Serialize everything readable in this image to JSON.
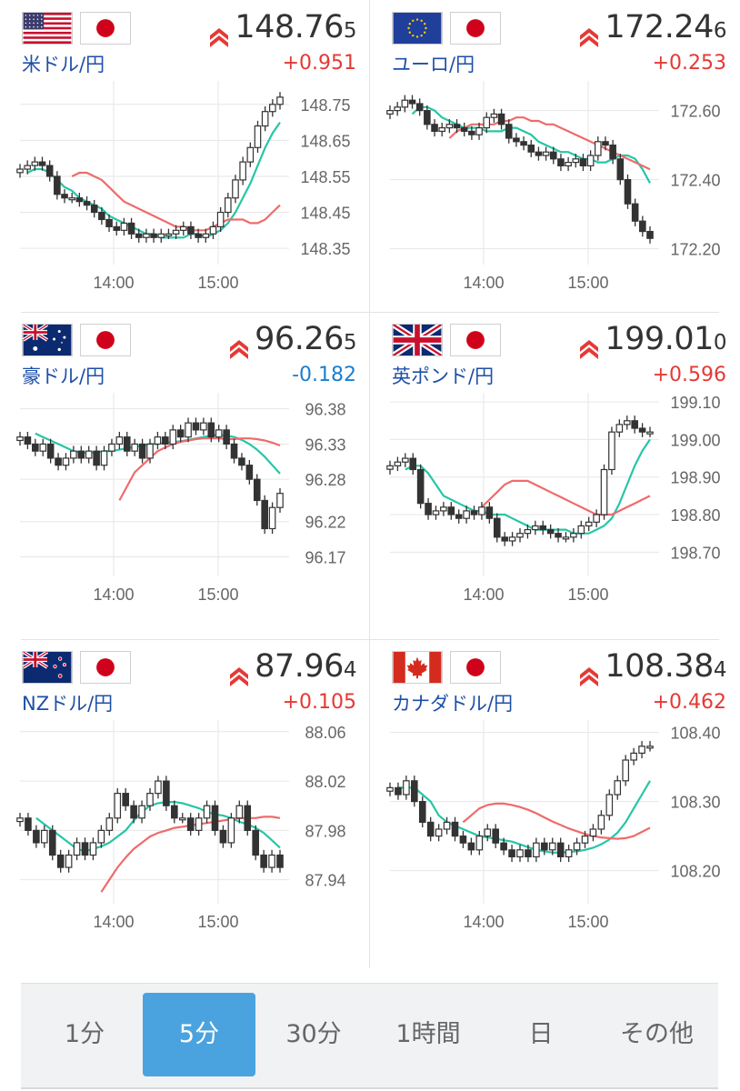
{
  "colors": {
    "up": "#e53935",
    "down": "#1a7fd0",
    "pair_name": "#1e4fa8",
    "short_ma": "#26c6a6",
    "long_ma": "#ef6b6b",
    "active_tab": "#4aa3df"
  },
  "pairs": [
    {
      "name": "米ドル/円",
      "flag_base": "us-flag-icon",
      "flag_quote": "japan-flag-icon",
      "price_main": "148.76",
      "price_last": "5",
      "trend_icon": "double-chevron-up-icon",
      "change": "+0.951",
      "change_dir": "up",
      "y_ticks": [
        "148.75",
        "148.65",
        "148.55",
        "148.45",
        "148.35"
      ],
      "x_ticks": [
        "14:00",
        "15:00"
      ]
    },
    {
      "name": "ユーロ/円",
      "flag_base": "eu-flag-icon",
      "flag_quote": "japan-flag-icon",
      "price_main": "172.24",
      "price_last": "6",
      "trend_icon": "double-chevron-up-icon",
      "change": "+0.253",
      "change_dir": "up",
      "y_ticks": [
        "172.60",
        "172.40",
        "172.20"
      ],
      "x_ticks": [
        "14:00",
        "15:00"
      ]
    },
    {
      "name": "豪ドル/円",
      "flag_base": "australia-flag-icon",
      "flag_quote": "japan-flag-icon",
      "price_main": "96.26",
      "price_last": "5",
      "trend_icon": "double-chevron-up-icon",
      "change": "-0.182",
      "change_dir": "down",
      "y_ticks": [
        "96.38",
        "96.33",
        "96.28",
        "96.22",
        "96.17"
      ],
      "x_ticks": [
        "14:00",
        "15:00"
      ]
    },
    {
      "name": "英ポンド/円",
      "flag_base": "uk-flag-icon",
      "flag_quote": "japan-flag-icon",
      "price_main": "199.01",
      "price_last": "0",
      "trend_icon": "double-chevron-up-icon",
      "change": "+0.596",
      "change_dir": "up",
      "y_ticks": [
        "199.10",
        "199.00",
        "198.90",
        "198.80",
        "198.70"
      ],
      "x_ticks": [
        "14:00",
        "15:00"
      ]
    },
    {
      "name": "NZドル/円",
      "flag_base": "nz-flag-icon",
      "flag_quote": "japan-flag-icon",
      "price_main": "87.96",
      "price_last": "4",
      "trend_icon": "double-chevron-up-icon",
      "change": "+0.105",
      "change_dir": "up",
      "y_ticks": [
        "88.06",
        "88.02",
        "87.98",
        "87.94"
      ],
      "x_ticks": [
        "14:00",
        "15:00"
      ]
    },
    {
      "name": "カナダドル/円",
      "flag_base": "canada-flag-icon",
      "flag_quote": "japan-flag-icon",
      "price_main": "108.38",
      "price_last": "4",
      "trend_icon": "double-chevron-up-icon",
      "change": "+0.462",
      "change_dir": "up",
      "y_ticks": [
        "108.40",
        "108.30",
        "108.20"
      ],
      "x_ticks": [
        "14:00",
        "15:00"
      ]
    }
  ],
  "tabs": [
    {
      "label": "1分",
      "active": false
    },
    {
      "label": "5分",
      "active": true
    },
    {
      "label": "30分",
      "active": false
    },
    {
      "label": "1時間",
      "active": false
    },
    {
      "label": "日",
      "active": false
    },
    {
      "label": "その他",
      "active": false
    }
  ],
  "chart_data": [
    {
      "type": "candlestick",
      "title": "米ドル/円",
      "x_ticks": [
        "14:00",
        "15:00"
      ],
      "y_ticks": [
        148.75,
        148.65,
        148.55,
        148.45,
        148.35
      ],
      "ylim": [
        148.32,
        148.8
      ],
      "close": [
        148.57,
        148.58,
        148.59,
        148.58,
        148.55,
        148.5,
        148.49,
        148.49,
        148.48,
        148.47,
        148.45,
        148.43,
        148.41,
        148.4,
        148.42,
        148.39,
        148.38,
        148.39,
        148.38,
        148.39,
        148.39,
        148.4,
        148.41,
        148.39,
        148.38,
        148.39,
        148.41,
        148.45,
        148.49,
        148.54,
        148.59,
        148.63,
        148.69,
        148.73,
        148.75,
        148.77
      ],
      "series": [
        {
          "name": "short_ma",
          "values": [
            148.56,
            148.57,
            148.57,
            148.56,
            148.54,
            148.52,
            148.51,
            148.49,
            148.48,
            148.47,
            148.46,
            148.44,
            148.43,
            148.42,
            148.41,
            148.4,
            148.39,
            148.39,
            148.38,
            148.38,
            148.38,
            148.38,
            148.39,
            148.39,
            148.38,
            148.39,
            148.4,
            148.42,
            148.45,
            148.49,
            148.53,
            148.58,
            148.63,
            148.67,
            148.7
          ]
        },
        {
          "name": "long_ma",
          "values": [
            148.55,
            148.56,
            148.56,
            148.55,
            148.54,
            148.52,
            148.5,
            148.48,
            148.47,
            148.46,
            148.45,
            148.44,
            148.43,
            148.42,
            148.41,
            148.41,
            148.4,
            148.4,
            148.4,
            148.41,
            148.42,
            148.43,
            148.43,
            148.43,
            148.42,
            148.42,
            148.43,
            148.45,
            148.47
          ]
        }
      ]
    },
    {
      "type": "candlestick",
      "title": "ユーロ/円",
      "x_ticks": [
        "14:00",
        "15:00"
      ],
      "y_ticks": [
        172.6,
        172.4,
        172.2
      ],
      "ylim": [
        172.17,
        172.67
      ],
      "close": [
        172.6,
        172.61,
        172.63,
        172.62,
        172.6,
        172.56,
        172.54,
        172.55,
        172.56,
        172.55,
        172.54,
        172.53,
        172.55,
        172.58,
        172.59,
        172.56,
        172.52,
        172.51,
        172.5,
        172.48,
        172.47,
        172.48,
        172.46,
        172.44,
        172.45,
        172.46,
        172.44,
        172.47,
        172.51,
        172.5,
        172.46,
        172.4,
        172.33,
        172.28,
        172.25,
        172.23
      ],
      "series": [
        {
          "name": "short_ma",
          "values": [
            172.59,
            172.61,
            172.61,
            172.6,
            172.58,
            172.57,
            172.56,
            172.55,
            172.55,
            172.55,
            172.54,
            172.54,
            172.54,
            172.55,
            172.55,
            172.54,
            172.53,
            172.51,
            172.5,
            172.49,
            172.48,
            172.48,
            172.47,
            172.46,
            172.46,
            172.45,
            172.45,
            172.46,
            172.47,
            172.47,
            172.46,
            172.43,
            172.39
          ]
        },
        {
          "name": "long_ma",
          "values": [
            172.52,
            172.54,
            172.55,
            172.56,
            172.56,
            172.56,
            172.56,
            172.57,
            172.57,
            172.58,
            172.58,
            172.57,
            172.57,
            172.56,
            172.56,
            172.55,
            172.54,
            172.53,
            172.52,
            172.51,
            172.5,
            172.49,
            172.48,
            172.47,
            172.46,
            172.45,
            172.44,
            172.43
          ]
        }
      ]
    },
    {
      "type": "candlestick",
      "title": "豪ドル/円",
      "x_ticks": [
        "14:00",
        "15:00"
      ],
      "y_ticks": [
        96.38,
        96.33,
        96.28,
        96.22,
        96.17
      ],
      "ylim": [
        96.15,
        96.395
      ],
      "close": [
        96.34,
        96.33,
        96.32,
        96.33,
        96.31,
        96.3,
        96.31,
        96.32,
        96.31,
        96.32,
        96.3,
        96.32,
        96.33,
        96.34,
        96.32,
        96.33,
        96.31,
        96.33,
        96.34,
        96.33,
        96.35,
        96.34,
        96.36,
        96.35,
        96.36,
        96.34,
        96.35,
        96.33,
        96.31,
        96.3,
        96.28,
        96.25,
        96.21,
        96.24,
        96.26
      ],
      "series": [
        {
          "name": "short_ma",
          "values": [
            96.345,
            96.34,
            96.335,
            96.33,
            96.325,
            96.32,
            96.318,
            96.318,
            96.318,
            96.32,
            96.32,
            96.322,
            96.324,
            96.326,
            96.328,
            96.33,
            96.33,
            96.332,
            96.333,
            96.334,
            96.336,
            96.338,
            96.34,
            96.342,
            96.343,
            96.342,
            96.34,
            96.336,
            96.33,
            96.322,
            96.312,
            96.3,
            96.288
          ]
        },
        {
          "name": "long_ma",
          "values": [
            96.25,
            96.27,
            96.29,
            96.3,
            96.31,
            96.32,
            96.325,
            96.33,
            96.333,
            96.335,
            96.337,
            96.338,
            96.338,
            96.338,
            96.337,
            96.337,
            96.338,
            96.338,
            96.337,
            96.335,
            96.332,
            96.328
          ]
        }
      ]
    },
    {
      "type": "candlestick",
      "title": "英ポンド/円",
      "x_ticks": [
        "14:00",
        "15:00"
      ],
      "y_ticks": [
        199.1,
        199.0,
        198.9,
        198.8,
        198.7
      ],
      "ylim": [
        198.65,
        199.11
      ],
      "close": [
        198.93,
        198.94,
        198.95,
        198.92,
        198.83,
        198.8,
        198.81,
        198.82,
        198.8,
        198.79,
        198.81,
        198.8,
        198.82,
        198.79,
        198.74,
        198.73,
        198.74,
        198.75,
        198.76,
        198.77,
        198.76,
        198.75,
        198.74,
        198.74,
        198.75,
        198.77,
        198.78,
        198.8,
        198.92,
        199.02,
        199.04,
        199.05,
        199.03,
        199.02,
        199.02
      ],
      "series": [
        {
          "name": "short_ma",
          "values": [
            198.92,
            198.93,
            198.93,
            198.91,
            198.88,
            198.85,
            198.84,
            198.83,
            198.82,
            198.81,
            198.81,
            198.8,
            198.8,
            198.8,
            198.79,
            198.78,
            198.77,
            198.76,
            198.76,
            198.76,
            198.76,
            198.76,
            198.75,
            198.75,
            198.75,
            198.76,
            198.77,
            198.79,
            198.83,
            198.88,
            198.93,
            198.97,
            199.0
          ]
        },
        {
          "name": "long_ma",
          "values": [
            198.82,
            198.84,
            198.86,
            198.88,
            198.89,
            198.89,
            198.89,
            198.88,
            198.87,
            198.86,
            198.85,
            198.84,
            198.83,
            198.82,
            198.81,
            198.8,
            198.8,
            198.8,
            198.81,
            198.82,
            198.83,
            198.84,
            198.85
          ]
        }
      ]
    },
    {
      "type": "candlestick",
      "title": "NZドル/円",
      "x_ticks": [
        "14:00",
        "15:00"
      ],
      "y_ticks": [
        88.06,
        88.02,
        87.98,
        87.94
      ],
      "ylim": [
        87.925,
        88.065
      ],
      "close": [
        87.99,
        87.98,
        87.97,
        87.98,
        87.96,
        87.95,
        87.96,
        87.97,
        87.96,
        87.97,
        87.98,
        87.99,
        88.01,
        88.0,
        87.99,
        88.0,
        88.01,
        88.02,
        88.0,
        87.99,
        87.99,
        87.98,
        87.99,
        88.0,
        87.98,
        87.97,
        87.99,
        88.0,
        87.98,
        87.96,
        87.95,
        87.96,
        87.95
      ],
      "series": [
        {
          "name": "short_ma",
          "values": [
            87.99,
            87.985,
            87.98,
            87.975,
            87.97,
            87.965,
            87.963,
            87.965,
            87.967,
            87.97,
            87.975,
            87.98,
            87.988,
            87.995,
            88.0,
            88.002,
            88.003,
            88.003,
            88.002,
            88.0,
            87.998,
            87.995,
            87.993,
            87.992,
            87.99,
            87.987,
            87.985,
            87.982,
            87.978,
            87.972,
            87.966
          ]
        },
        {
          "name": "long_ma",
          "values": [
            87.93,
            87.94,
            87.95,
            87.958,
            87.965,
            87.97,
            87.975,
            87.978,
            87.98,
            87.982,
            87.983,
            87.984,
            87.985,
            87.986,
            87.987,
            87.988,
            87.989,
            87.99,
            87.99,
            87.99,
            87.991,
            87.991,
            87.99
          ]
        }
      ]
    },
    {
      "type": "candlestick",
      "title": "カナダドル/円",
      "x_ticks": [
        "14:00",
        "15:00"
      ],
      "y_ticks": [
        108.4,
        108.3,
        108.2
      ],
      "ylim": [
        108.16,
        108.41
      ],
      "close": [
        108.32,
        108.31,
        108.33,
        108.3,
        108.27,
        108.25,
        108.26,
        108.27,
        108.25,
        108.24,
        108.23,
        108.25,
        108.26,
        108.24,
        108.23,
        108.22,
        108.23,
        108.22,
        108.24,
        108.23,
        108.24,
        108.22,
        108.23,
        108.24,
        108.25,
        108.26,
        108.28,
        108.31,
        108.33,
        108.36,
        108.37,
        108.38,
        108.38
      ],
      "series": [
        {
          "name": "short_ma",
          "values": [
            108.32,
            108.32,
            108.32,
            108.31,
            108.3,
            108.28,
            108.27,
            108.265,
            108.26,
            108.255,
            108.25,
            108.248,
            108.246,
            108.244,
            108.242,
            108.238,
            108.234,
            108.23,
            108.228,
            108.226,
            108.226,
            108.227,
            108.228,
            108.23,
            108.233,
            108.238,
            108.245,
            108.255,
            108.27,
            108.29,
            108.31,
            108.33
          ]
        },
        {
          "name": "long_ma",
          "values": [
            108.27,
            108.28,
            108.29,
            108.295,
            108.297,
            108.297,
            108.295,
            108.292,
            108.288,
            108.283,
            108.277,
            108.271,
            108.266,
            108.261,
            108.257,
            108.253,
            108.25,
            108.248,
            108.247,
            108.246,
            108.247,
            108.25,
            108.256,
            108.262
          ]
        }
      ]
    }
  ]
}
